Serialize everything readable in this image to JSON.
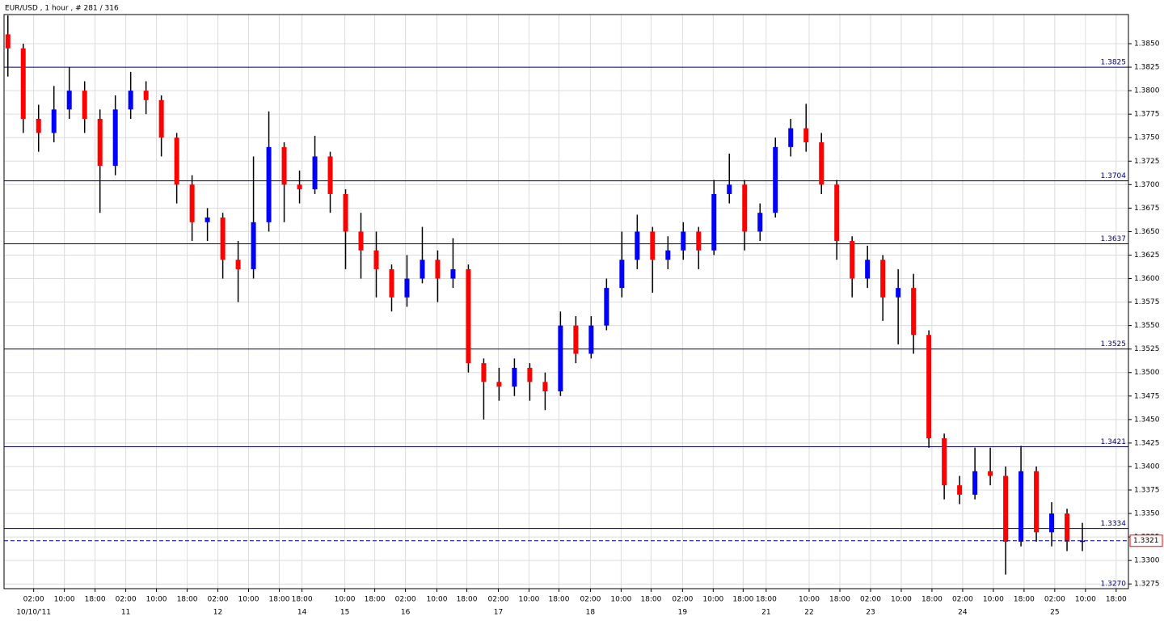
{
  "chart_data": {
    "type": "candlestick",
    "title": "EUR/USD , 1 hour , # 281 / 316",
    "up_color": "#0000ff",
    "down_color": "#ff0000",
    "level_color": "#000080",
    "grid": true,
    "open": [
      1.386,
      1.3845,
      1.377,
      1.3755,
      1.378,
      1.38,
      1.377,
      1.372,
      1.378,
      1.38,
      1.379,
      1.375,
      1.37,
      1.366,
      1.3665,
      1.362,
      1.361,
      1.366,
      1.374,
      1.37,
      1.3695,
      1.373,
      1.369,
      1.365,
      1.363,
      1.361,
      1.358,
      1.36,
      1.362,
      1.36,
      1.361,
      1.351,
      1.349,
      1.3485,
      1.3505,
      1.349,
      1.348,
      1.355,
      1.352,
      1.355,
      1.359,
      1.362,
      1.365,
      1.362,
      1.363,
      1.365,
      1.363,
      1.369,
      1.37,
      1.365,
      1.367,
      1.374,
      1.376,
      1.3745,
      1.37,
      1.364,
      1.36,
      1.362,
      1.358,
      1.359,
      1.354,
      1.343,
      1.338,
      1.337,
      1.3395,
      1.339,
      1.332,
      1.3395,
      1.333,
      1.335,
      1.332
    ],
    "high": [
      1.388,
      1.385,
      1.3785,
      1.3805,
      1.3825,
      1.381,
      1.378,
      1.3795,
      1.382,
      1.381,
      1.3795,
      1.3755,
      1.371,
      1.3675,
      1.367,
      1.364,
      1.373,
      1.3778,
      1.3745,
      1.3715,
      1.3752,
      1.3735,
      1.3695,
      1.367,
      1.365,
      1.3615,
      1.3625,
      1.3655,
      1.363,
      1.3643,
      1.3615,
      1.3515,
      1.3505,
      1.3515,
      1.351,
      1.35,
      1.3565,
      1.356,
      1.356,
      1.36,
      1.365,
      1.3668,
      1.3655,
      1.3645,
      1.366,
      1.3655,
      1.3705,
      1.3733,
      1.3705,
      1.368,
      1.375,
      1.377,
      1.3786,
      1.3755,
      1.3705,
      1.3645,
      1.3635,
      1.3625,
      1.361,
      1.3605,
      1.3545,
      1.3435,
      1.339,
      1.342,
      1.342,
      1.34,
      1.3422,
      1.34,
      1.3362,
      1.3355,
      1.334
    ],
    "low": [
      1.3815,
      1.3755,
      1.3735,
      1.3745,
      1.377,
      1.3755,
      1.367,
      1.371,
      1.377,
      1.3775,
      1.373,
      1.368,
      1.364,
      1.364,
      1.36,
      1.3575,
      1.36,
      1.365,
      1.366,
      1.368,
      1.369,
      1.367,
      1.361,
      1.36,
      1.358,
      1.3565,
      1.357,
      1.3595,
      1.3575,
      1.359,
      1.35,
      1.345,
      1.347,
      1.3475,
      1.347,
      1.346,
      1.3475,
      1.351,
      1.3515,
      1.3545,
      1.358,
      1.361,
      1.3585,
      1.361,
      1.362,
      1.361,
      1.3625,
      1.368,
      1.363,
      1.364,
      1.3665,
      1.373,
      1.3735,
      1.369,
      1.362,
      1.358,
      1.359,
      1.3555,
      1.353,
      1.352,
      1.342,
      1.3365,
      1.336,
      1.3365,
      1.338,
      1.3285,
      1.3315,
      1.332,
      1.3315,
      1.331,
      1.331
    ],
    "close": [
      1.3845,
      1.377,
      1.3755,
      1.378,
      1.38,
      1.377,
      1.372,
      1.378,
      1.38,
      1.379,
      1.375,
      1.37,
      1.366,
      1.3665,
      1.362,
      1.361,
      1.366,
      1.374,
      1.37,
      1.3695,
      1.373,
      1.369,
      1.365,
      1.363,
      1.361,
      1.358,
      1.36,
      1.362,
      1.36,
      1.361,
      1.351,
      1.349,
      1.3485,
      1.3505,
      1.349,
      1.348,
      1.355,
      1.352,
      1.355,
      1.359,
      1.362,
      1.365,
      1.362,
      1.363,
      1.365,
      1.363,
      1.369,
      1.37,
      1.365,
      1.367,
      1.374,
      1.376,
      1.3745,
      1.37,
      1.364,
      1.36,
      1.362,
      1.358,
      1.359,
      1.354,
      1.343,
      1.338,
      1.337,
      1.3395,
      1.339,
      1.332,
      1.3395,
      1.333,
      1.335,
      1.332,
      1.3321
    ],
    "levels": [
      1.3825,
      1.3704,
      1.3637,
      1.3525,
      1.3421,
      1.3334,
      {
        "value": 1.327,
        "label": "1.3270"
      }
    ],
    "current_price": 1.3321,
    "ylim": [
      1.327,
      1.3881
    ],
    "yticks": [
      1.3275,
      {
        "value": 1.33,
        "label": "1.3300"
      },
      1.3325,
      {
        "value": 1.335,
        "label": "1.3350"
      },
      1.3375,
      {
        "value": 1.34,
        "label": "1.3400"
      },
      1.3425,
      {
        "value": 1.345,
        "label": "1.3450"
      },
      1.3475,
      {
        "value": 1.35,
        "label": "1.3500"
      },
      1.3525,
      {
        "value": 1.355,
        "label": "1.3550"
      },
      1.3575,
      {
        "value": 1.36,
        "label": "1.3600"
      },
      1.3625,
      {
        "value": 1.365,
        "label": "1.3650"
      },
      1.3675,
      {
        "value": 1.37,
        "label": "1.3700"
      },
      1.3725,
      {
        "value": 1.375,
        "label": "1.3750"
      },
      1.3775,
      {
        "value": 1.38,
        "label": "1.3800"
      },
      1.3825,
      {
        "value": 1.385,
        "label": "1.3850"
      }
    ],
    "xlim": [
      -0.25,
      73
    ],
    "xticks": [
      {
        "value": 1.68,
        "label": "02:00"
      },
      {
        "value": 3.68,
        "label": "10:00"
      },
      {
        "value": 5.68,
        "label": "18:00"
      },
      {
        "value": 7.68,
        "label": "02:00"
      },
      {
        "value": 9.68,
        "label": "10:00"
      },
      {
        "value": 11.68,
        "label": "18:00"
      },
      {
        "value": 13.68,
        "label": "02:00"
      },
      {
        "value": 15.68,
        "label": "10:00"
      },
      {
        "value": 17.68,
        "label": "18:00"
      },
      {
        "value": 19.16,
        "label": "18:00"
      },
      {
        "value": 21.95,
        "label": "10:00"
      },
      {
        "value": 23.9,
        "label": "18:00"
      },
      {
        "value": 25.9,
        "label": "02:00"
      },
      {
        "value": 27.95,
        "label": "10:00"
      },
      {
        "value": 29.9,
        "label": "18:00"
      },
      {
        "value": 31.95,
        "label": "02:00"
      },
      {
        "value": 33.95,
        "label": "10:00"
      },
      {
        "value": 35.9,
        "label": "18:00"
      },
      {
        "value": 37.95,
        "label": "02:00"
      },
      {
        "value": 39.95,
        "label": "10:00"
      },
      {
        "value": 41.9,
        "label": "18:00"
      },
      {
        "value": 43.95,
        "label": "02:00"
      },
      {
        "value": 45.95,
        "label": "10:00"
      },
      {
        "value": 47.9,
        "label": "18:00"
      },
      {
        "value": 49.4,
        "label": "18:00"
      },
      {
        "value": 52.2,
        "label": "10:00"
      },
      {
        "value": 54.2,
        "label": "18:00"
      },
      {
        "value": 56.2,
        "label": "02:00"
      },
      {
        "value": 58.2,
        "label": "10:00"
      },
      {
        "value": 60.2,
        "label": "18:00"
      },
      {
        "value": 62.2,
        "label": "02:00"
      },
      {
        "value": 64.2,
        "label": "10:00"
      },
      {
        "value": 66.2,
        "label": "18:00"
      },
      {
        "value": 68.2,
        "label": "02:00"
      },
      {
        "value": 70.2,
        "label": "10:00"
      },
      {
        "value": 72.2,
        "label": "18:00"
      }
    ],
    "date_ticks": [
      {
        "value": 1.68,
        "label": "10/10/'11"
      },
      {
        "value": 7.68,
        "label": "11"
      },
      {
        "value": 13.68,
        "label": "12"
      },
      {
        "value": 19.16,
        "label": "14"
      },
      {
        "value": 21.95,
        "label": "15"
      },
      {
        "value": 25.9,
        "label": "16"
      },
      {
        "value": 31.95,
        "label": "17"
      },
      {
        "value": 37.95,
        "label": "18"
      },
      {
        "value": 43.95,
        "label": "19"
      },
      {
        "value": 49.4,
        "label": "21"
      },
      {
        "value": 52.2,
        "label": "22"
      },
      {
        "value": 56.2,
        "label": "23"
      },
      {
        "value": 62.2,
        "label": "24"
      },
      {
        "value": 68.2,
        "label": "25"
      }
    ]
  }
}
